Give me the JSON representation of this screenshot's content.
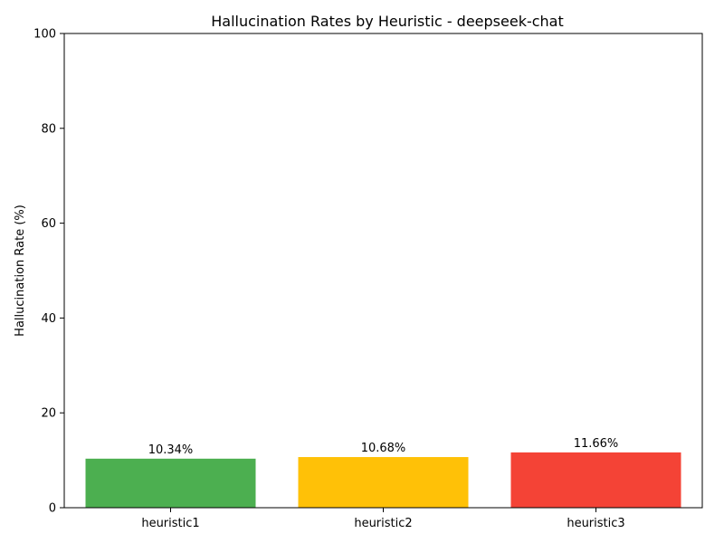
{
  "chart_data": {
    "type": "bar",
    "title": "Hallucination Rates by Heuristic - deepseek-chat",
    "xlabel": "",
    "ylabel": "Hallucination Rate (%)",
    "categories": [
      "heuristic1",
      "heuristic2",
      "heuristic3"
    ],
    "values": [
      10.34,
      10.68,
      11.66
    ],
    "data_labels": [
      "10.34%",
      "10.68%",
      "11.66%"
    ],
    "colors": [
      "#4caf50",
      "#ffc107",
      "#f44336"
    ],
    "ylim": [
      0,
      100
    ],
    "yticks": [
      0,
      20,
      40,
      60,
      80,
      100
    ],
    "grid": false,
    "legend": "none"
  }
}
